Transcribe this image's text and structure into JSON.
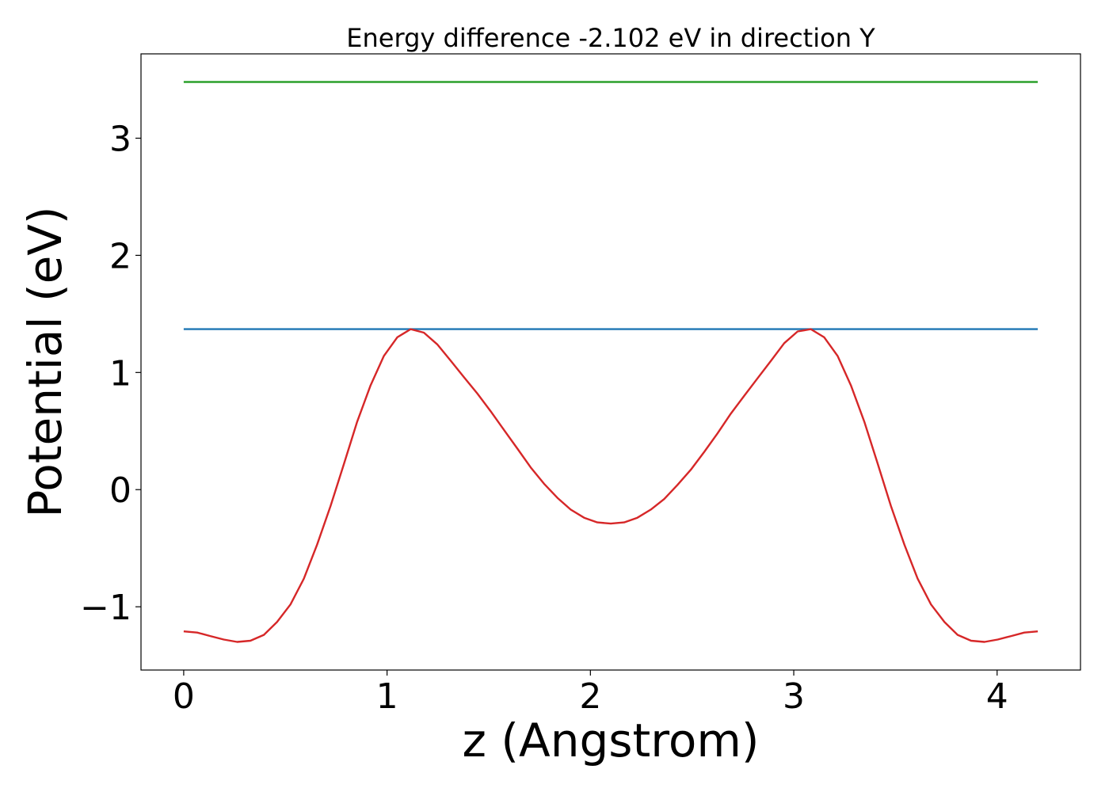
{
  "chart_data": {
    "type": "line",
    "title": "Energy difference -2.102 eV in direction Y",
    "xlabel": "z (Angstrom)",
    "ylabel": "Potential (eV)",
    "xlim": [
      -0.21,
      4.41
    ],
    "ylim": [
      -1.54,
      3.72
    ],
    "xticks": [
      0,
      1,
      2,
      3,
      4
    ],
    "xtick_labels": [
      "0",
      "1",
      "2",
      "3",
      "4"
    ],
    "yticks": [
      -1,
      0,
      1,
      2,
      3
    ],
    "ytick_labels": [
      "−1",
      "0",
      "1",
      "2",
      "3"
    ],
    "grid": false,
    "series": [
      {
        "color": "#2ca02c",
        "x": [
          0,
          4.2
        ],
        "y": [
          3.48,
          3.48
        ]
      },
      {
        "color": "#1f77b4",
        "x": [
          0,
          4.2
        ],
        "y": [
          1.37,
          1.37
        ]
      },
      {
        "color": "#d62728",
        "x": [
          0,
          0.066,
          0.131,
          0.197,
          0.263,
          0.328,
          0.394,
          0.459,
          0.525,
          0.591,
          0.656,
          0.722,
          0.788,
          0.853,
          0.919,
          0.984,
          1.05,
          1.116,
          1.181,
          1.247,
          1.313,
          1.378,
          1.444,
          1.509,
          1.575,
          1.641,
          1.706,
          1.772,
          1.838,
          1.903,
          1.969,
          2.034,
          2.1,
          2.166,
          2.231,
          2.297,
          2.363,
          2.428,
          2.494,
          2.559,
          2.625,
          2.691,
          2.756,
          2.822,
          2.888,
          2.953,
          3.019,
          3.084,
          3.15,
          3.216,
          3.281,
          3.347,
          3.413,
          3.478,
          3.544,
          3.609,
          3.675,
          3.741,
          3.806,
          3.872,
          3.938,
          4.003,
          4.069,
          4.134,
          4.2
        ],
        "y": [
          -1.21,
          -1.22,
          -1.25,
          -1.28,
          -1.3,
          -1.29,
          -1.24,
          -1.13,
          -0.98,
          -0.76,
          -0.47,
          -0.14,
          0.22,
          0.58,
          0.89,
          1.14,
          1.3,
          1.37,
          1.34,
          1.24,
          1.1,
          0.96,
          0.82,
          0.67,
          0.51,
          0.35,
          0.19,
          0.05,
          -0.07,
          -0.17,
          -0.24,
          -0.28,
          -0.29,
          -0.28,
          -0.24,
          -0.17,
          -0.08,
          0.04,
          0.17,
          0.32,
          0.48,
          0.65,
          0.8,
          0.95,
          1.1,
          1.25,
          1.35,
          1.37,
          1.3,
          1.14,
          0.89,
          0.58,
          0.22,
          -0.14,
          -0.47,
          -0.76,
          -0.98,
          -1.13,
          -1.24,
          -1.29,
          -1.3,
          -1.28,
          -1.25,
          -1.22,
          -1.21
        ]
      }
    ]
  }
}
